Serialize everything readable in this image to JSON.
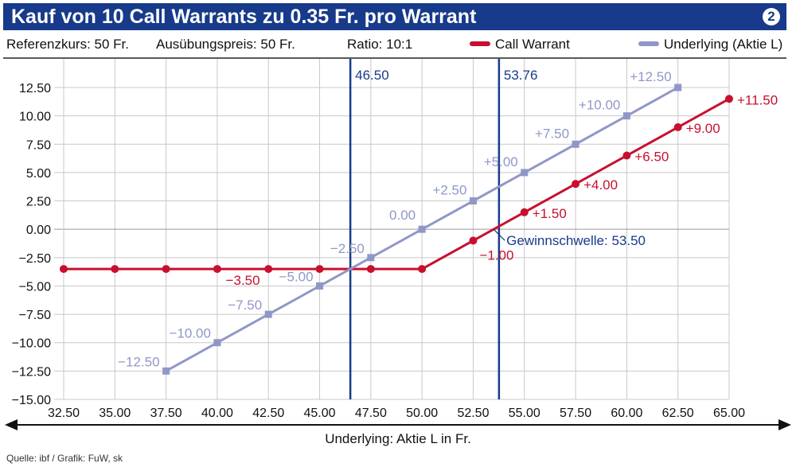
{
  "header": {
    "title": "Kauf von 10 Call Warrants zu 0.35 Fr. pro Warrant",
    "badge": "2"
  },
  "info": {
    "reference": "Referenzkurs: 50 Fr.",
    "strike": "Ausübungspreis: 50 Fr.",
    "ratio": "Ratio: 10:1"
  },
  "legend": [
    {
      "name": "Call Warrant",
      "color": "#c8102e"
    },
    {
      "name": "Underlying (Aktie L)",
      "color": "#9097c8"
    }
  ],
  "source": "Quelle: ibf / Grafik: FuW, sk",
  "chart_data": {
    "type": "line",
    "xlabel": "Underlying: Aktie L in Fr.",
    "ylabel": "",
    "xlim": [
      32.5,
      65
    ],
    "ylim": [
      -15,
      12.5
    ],
    "grid": true,
    "legend_position": "top",
    "x_ticks": [
      "32.50",
      "35.00",
      "37.50",
      "40.00",
      "42.50",
      "45.00",
      "47.50",
      "50.00",
      "52.50",
      "55.00",
      "57.50",
      "60.00",
      "62.50",
      "65.00"
    ],
    "y_ticks": [
      "12.50",
      "10.00",
      "7.50",
      "5.00",
      "2.50",
      "0.00",
      "−2.50",
      "−5.00",
      "−7.50",
      "−10.00",
      "−12.50",
      "−15.00"
    ],
    "series": [
      {
        "name": "Call Warrant",
        "color": "#c8102e",
        "x": [
          32.5,
          35,
          37.5,
          40,
          42.5,
          45,
          47.5,
          50,
          52.5,
          55,
          57.5,
          60,
          62.5,
          65
        ],
        "y": [
          -3.5,
          -3.5,
          -3.5,
          -3.5,
          -3.5,
          -3.5,
          -3.5,
          -3.5,
          -1.0,
          1.5,
          4.0,
          6.5,
          9.0,
          11.5
        ],
        "labels": [
          {
            "x": 45,
            "y": -3.5,
            "text": "−3.50"
          },
          {
            "x": 52.5,
            "y": -1.0,
            "text": "−1.00"
          },
          {
            "x": 55,
            "y": 1.5,
            "text": "+1.50"
          },
          {
            "x": 57.5,
            "y": 4.0,
            "text": "+4.00"
          },
          {
            "x": 60,
            "y": 6.5,
            "text": "+6.50"
          },
          {
            "x": 62.5,
            "y": 9.0,
            "text": "+9.00"
          },
          {
            "x": 65,
            "y": 11.5,
            "text": "+11.50"
          }
        ]
      },
      {
        "name": "Underlying (Aktie L)",
        "color": "#9097c8",
        "x": [
          37.5,
          40,
          42.5,
          45,
          47.5,
          50,
          52.5,
          55,
          57.5,
          60,
          62.5
        ],
        "y": [
          -12.5,
          -10.0,
          -7.5,
          -5.0,
          -2.5,
          0.0,
          2.5,
          5.0,
          7.5,
          10.0,
          12.5
        ],
        "labels": [
          {
            "x": 37.5,
            "y": -12.5,
            "text": "−12.50"
          },
          {
            "x": 40,
            "y": -10.0,
            "text": "−10.00"
          },
          {
            "x": 42.5,
            "y": -7.5,
            "text": "−7.50"
          },
          {
            "x": 45,
            "y": -5.0,
            "text": "−5.00"
          },
          {
            "x": 47.5,
            "y": -2.5,
            "text": "−2.50"
          },
          {
            "x": 50,
            "y": 0.0,
            "text": "0.00"
          },
          {
            "x": 52.5,
            "y": 2.5,
            "text": "+2.50"
          },
          {
            "x": 55,
            "y": 5.0,
            "text": "+5.00"
          },
          {
            "x": 57.5,
            "y": 7.5,
            "text": "+7.50"
          },
          {
            "x": 60,
            "y": 10.0,
            "text": "+10.00"
          },
          {
            "x": 62.5,
            "y": 12.5,
            "text": "+12.50"
          }
        ]
      }
    ],
    "vlines": [
      {
        "x": 46.5,
        "label": "46.50",
        "color": "#173a8a"
      },
      {
        "x": 53.76,
        "label": "53.76",
        "color": "#173a8a"
      }
    ],
    "annotations": [
      {
        "x": 53.5,
        "y": 0,
        "text": "Gewinnschwelle: 53.50"
      }
    ]
  }
}
